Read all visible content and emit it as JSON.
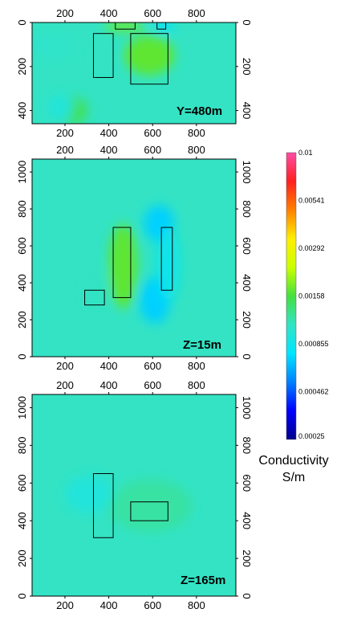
{
  "chart_data": {
    "type": "heatmap",
    "title": "",
    "panels": [
      {
        "label": "Y=480m",
        "xlabel": "",
        "ylabel": "",
        "x_ticks": [
          200,
          400,
          600,
          800
        ],
        "y_ticks": [
          0,
          200,
          400
        ],
        "xlim": [
          50,
          980
        ],
        "ylim": [
          0,
          460
        ],
        "y_inverted": true,
        "background": "#33e3c4",
        "anomalies": [
          {
            "x": [
              380,
              560
            ],
            "y": [
              -10,
              40
            ],
            "value": 0.00175
          },
          {
            "x": [
              470,
              700
            ],
            "y": [
              60,
              240
            ],
            "value": 0.0017
          },
          {
            "x": [
              320,
              420
            ],
            "y": [
              120,
              200
            ],
            "value": 0.0011
          },
          {
            "x": [
              180,
              300
            ],
            "y": [
              340,
              460
            ],
            "value": 0.00155
          },
          {
            "x": [
              40,
              230
            ],
            "y": [
              60,
              160
            ],
            "value": 0.00105
          },
          {
            "x": [
              600,
              700
            ],
            "y": [
              -10,
              40
            ],
            "value": 0.00075
          },
          {
            "x": [
              120,
              240
            ],
            "y": [
              330,
              440
            ],
            "value": 0.00095
          }
        ],
        "rectangles": [
          {
            "x": [
              330,
              420
            ],
            "y": [
              50,
              250
            ]
          },
          {
            "x": [
              500,
              670
            ],
            "y": [
              50,
              280
            ]
          },
          {
            "x": [
              430,
              520
            ],
            "y": [
              -10,
              30
            ]
          },
          {
            "x": [
              620,
              660
            ],
            "y": [
              -10,
              30
            ]
          }
        ]
      },
      {
        "label": "Z=15m",
        "xlabel": "",
        "ylabel": "",
        "x_ticks": [
          200,
          400,
          600,
          800
        ],
        "y_ticks": [
          0,
          200,
          400,
          600,
          800,
          1000
        ],
        "xlim": [
          50,
          980
        ],
        "ylim": [
          0,
          1070
        ],
        "y_inverted": false,
        "background": "#33e3c4",
        "anomalies": [
          {
            "x": [
              400,
              530
            ],
            "y": [
              260,
              720
            ],
            "value": 0.0017
          },
          {
            "x": [
              540,
              680
            ],
            "y": [
              180,
              430
            ],
            "value": 0.0007
          },
          {
            "x": [
              560,
              700
            ],
            "y": [
              620,
              820
            ],
            "value": 0.0007
          },
          {
            "x": [
              290,
              400
            ],
            "y": [
              200,
              500
            ],
            "value": 0.0011
          },
          {
            "x": [
              620,
              720
            ],
            "y": [
              300,
              700
            ],
            "value": 0.00085
          }
        ],
        "rectangles": [
          {
            "x": [
              420,
              500
            ],
            "y": [
              320,
              700
            ]
          },
          {
            "x": [
              640,
              690
            ],
            "y": [
              360,
              700
            ]
          },
          {
            "x": [
              290,
              380
            ],
            "y": [
              280,
              360
            ]
          }
        ]
      },
      {
        "label": "Z=165m",
        "xlabel": "",
        "ylabel": "",
        "x_ticks": [
          200,
          400,
          600,
          800
        ],
        "y_ticks": [
          0,
          200,
          400,
          600,
          800,
          1000
        ],
        "xlim": [
          50,
          980
        ],
        "ylim": [
          0,
          1070
        ],
        "y_inverted": false,
        "background": "#33e3c4",
        "anomalies": [
          {
            "x": [
              460,
              720
            ],
            "y": [
              390,
              560
            ],
            "value": 0.0019
          },
          {
            "x": [
              400,
              780
            ],
            "y": [
              340,
              620
            ],
            "value": 0.0012
          },
          {
            "x": [
              200,
              420
            ],
            "y": [
              440,
              640
            ],
            "value": 0.00095
          }
        ],
        "rectangles": [
          {
            "x": [
              330,
              420
            ],
            "y": [
              310,
              650
            ]
          },
          {
            "x": [
              500,
              670
            ],
            "y": [
              400,
              500
            ]
          }
        ]
      }
    ],
    "colorbar": {
      "title_line1": "Conductivity",
      "title_line2": "S/m",
      "scale": "log",
      "range": [
        0.00025,
        0.01
      ],
      "tick_labels": [
        "0.01",
        "0.00541",
        "0.00292",
        "0.00158",
        "0.000855",
        "0.000462",
        "0.00025"
      ],
      "tick_values": [
        0.01,
        0.00541,
        0.00292,
        0.00158,
        0.000855,
        0.000462,
        0.00025
      ],
      "colors": [
        "#00008b",
        "#0000ff",
        "#0080ff",
        "#00e5ff",
        "#33e3c4",
        "#44e040",
        "#ccff00",
        "#ffee00",
        "#ff8000",
        "#ff2020",
        "#ff4da6"
      ]
    }
  }
}
